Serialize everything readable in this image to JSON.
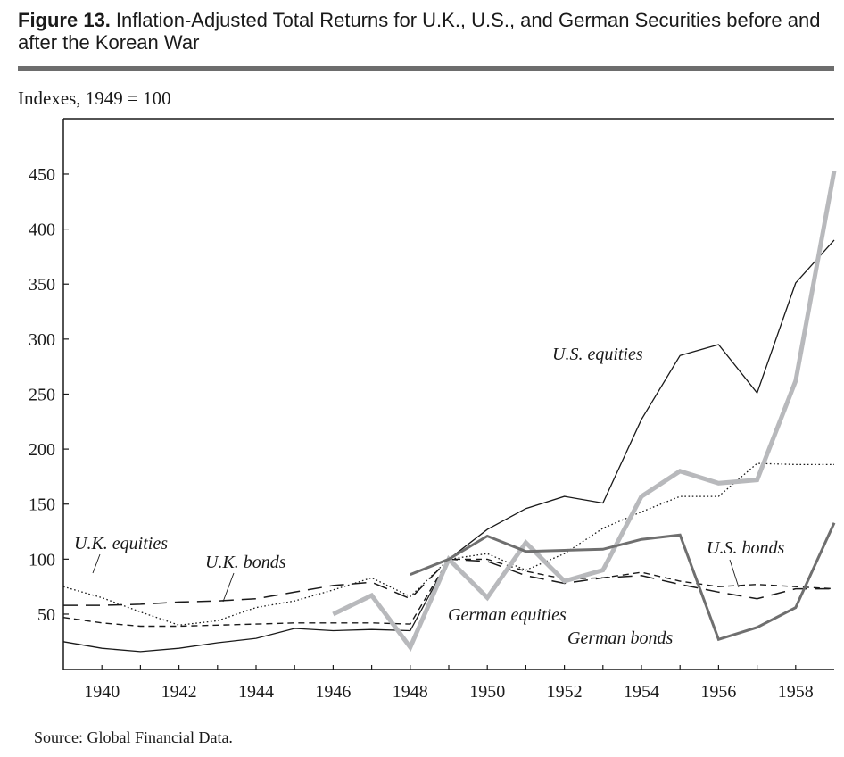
{
  "figure": {
    "number": "Figure 13.",
    "title": "Inflation-Adjusted Total Returns for U.K., U.S., and German Securities before and after the Korean War",
    "units": "Indexes, 1949 = 100",
    "source": "Source: Global Financial Data."
  },
  "chart_data": {
    "type": "line",
    "title": "Inflation-Adjusted Total Returns for U.K., U.S., and German Securities before and after the Korean War",
    "xlabel": "",
    "ylabel": "Indexes, 1949 = 100",
    "xlim": [
      1939,
      1959
    ],
    "ylim": [
      0,
      500
    ],
    "y_ticks": [
      50,
      100,
      150,
      200,
      250,
      300,
      350,
      400,
      450
    ],
    "x_ticks": [
      1940,
      1942,
      1944,
      1946,
      1948,
      1950,
      1952,
      1954,
      1956,
      1958
    ],
    "grid": false,
    "series": [
      {
        "name": "U.S. equities",
        "style": "solid-thin",
        "color": "#1a1a1a",
        "x": [
          1939,
          1940,
          1941,
          1942,
          1943,
          1944,
          1945,
          1946,
          1947,
          1948,
          1949,
          1950,
          1951,
          1952,
          1953,
          1954,
          1955,
          1956,
          1957,
          1958,
          1959
        ],
        "values": [
          25,
          19,
          16,
          19,
          24,
          28,
          37,
          35,
          36,
          35,
          100,
          127,
          146,
          157,
          151,
          227,
          285,
          295,
          251,
          351,
          390
        ]
      },
      {
        "name": "U.K. equities",
        "style": "dotted",
        "color": "#1a1a1a",
        "x": [
          1939,
          1940,
          1941,
          1942,
          1943,
          1944,
          1945,
          1946,
          1947,
          1948,
          1949,
          1950,
          1951,
          1952,
          1953,
          1954,
          1955,
          1956,
          1957,
          1958,
          1959
        ],
        "values": [
          75,
          65,
          52,
          40,
          44,
          56,
          62,
          72,
          83,
          66,
          100,
          105,
          90,
          105,
          128,
          143,
          157,
          157,
          187,
          186,
          186
        ]
      },
      {
        "name": "U.K. bonds",
        "style": "long-dash",
        "color": "#1a1a1a",
        "x": [
          1939,
          1940,
          1941,
          1942,
          1943,
          1944,
          1945,
          1946,
          1947,
          1948,
          1949,
          1950,
          1951,
          1952,
          1953,
          1954,
          1955,
          1956,
          1957,
          1958,
          1959
        ],
        "values": [
          58,
          58,
          59,
          61,
          62,
          64,
          70,
          76,
          79,
          64,
          100,
          98,
          85,
          78,
          83,
          85,
          77,
          70,
          64,
          73,
          73
        ]
      },
      {
        "name": "U.S. bonds",
        "style": "short-dash",
        "color": "#1a1a1a",
        "x": [
          1939,
          1940,
          1941,
          1942,
          1943,
          1944,
          1945,
          1946,
          1947,
          1948,
          1949,
          1950,
          1951,
          1952,
          1953,
          1954,
          1955,
          1956,
          1957,
          1958,
          1959
        ],
        "values": [
          47,
          42,
          39,
          39,
          40,
          41,
          42,
          42,
          42,
          41,
          100,
          100,
          89,
          82,
          83,
          88,
          80,
          75,
          77,
          75,
          73
        ]
      },
      {
        "name": "German equities",
        "style": "thick-light",
        "color": "#b8b9bc",
        "x": [
          1946,
          1947,
          1948,
          1949,
          1950,
          1951,
          1952,
          1953,
          1954,
          1955,
          1956,
          1957,
          1958,
          1959
        ],
        "values": [
          50,
          67,
          20,
          100,
          65,
          115,
          80,
          90,
          157,
          180,
          169,
          172,
          262,
          453
        ]
      },
      {
        "name": "German bonds",
        "style": "medium-dark",
        "color": "#6f6f6f",
        "x": [
          1948,
          1949,
          1950,
          1951,
          1952,
          1953,
          1954,
          1955,
          1956,
          1957,
          1958,
          1959
        ],
        "values": [
          86,
          100,
          121,
          107,
          108,
          109,
          118,
          122,
          27,
          38,
          56,
          133
        ]
      }
    ],
    "annotations": [
      {
        "text": "U.S. equities",
        "series": "U.S. equities"
      },
      {
        "text": "U.K. equities",
        "series": "U.K. equities"
      },
      {
        "text": "U.K. bonds",
        "series": "U.K. bonds"
      },
      {
        "text": "U.S. bonds",
        "series": "U.S. bonds"
      },
      {
        "text": "German equities",
        "series": "German equities"
      },
      {
        "text": "German bonds",
        "series": "German bonds"
      }
    ]
  }
}
